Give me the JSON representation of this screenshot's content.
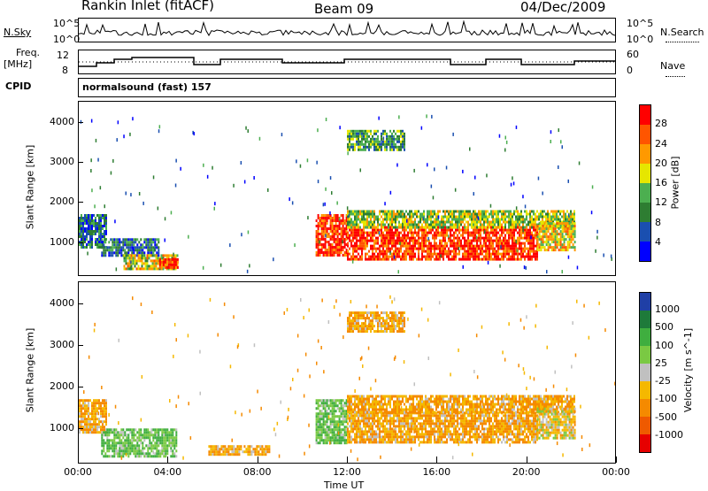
{
  "header": {
    "station": "Rankin Inlet (fitACF)",
    "beam": "Beam 09",
    "date": "04/Dec/2009"
  },
  "aux": {
    "nsky_label": "N.Sky",
    "nsky_ticks": [
      "10^5",
      "10^0"
    ],
    "nsearch_label": "N.Search",
    "nsearch_ticks": [
      "10^5",
      "10^0"
    ],
    "freq_label_1": "Freq.",
    "freq_label_2": "[MHz]",
    "freq_ticks": [
      "12",
      "8"
    ],
    "nave_label": "Nave",
    "nave_ticks": [
      "60",
      "0"
    ],
    "cpid_label": "CPID",
    "cpid_value": "normalsound (fast) 157"
  },
  "colors": {
    "power": [
      "#0000ff",
      "#1a4fb0",
      "#2e7d32",
      "#4caf50",
      "#e6e600",
      "#ff9900",
      "#ff5500",
      "#ff0000"
    ],
    "velocity": [
      "#1f3fa6",
      "#1e7a3a",
      "#3fae3f",
      "#7ac943",
      "#c0c0c0",
      "#f5b800",
      "#f58a00",
      "#ef5a00",
      "#e60000"
    ]
  },
  "chart_data": [
    {
      "type": "heatmap",
      "name": "power",
      "xlabel": "Time UT",
      "ylabel": "Slant Range [km]",
      "x_ticks": [
        "00:00",
        "04:00",
        "08:00",
        "12:00",
        "16:00",
        "20:00",
        "00:00"
      ],
      "y_ticks": [
        1000,
        2000,
        3000,
        4000
      ],
      "xlim": [
        0,
        24
      ],
      "ylim": [
        180,
        4500
      ],
      "colorbar_label": "Power [dB]",
      "colorbar_ticks": [
        4,
        8,
        12,
        16,
        20,
        24,
        28
      ],
      "colorbar_range": [
        0,
        32
      ],
      "regions": [
        {
          "t": [
            0.0,
            1.2
          ],
          "r": [
            900,
            1700
          ],
          "value": 8
        },
        {
          "t": [
            1.0,
            3.6
          ],
          "r": [
            700,
            1100
          ],
          "value": 8
        },
        {
          "t": [
            2.0,
            4.4
          ],
          "r": [
            350,
            700
          ],
          "value": 18
        },
        {
          "t": [
            3.6,
            4.4
          ],
          "r": [
            350,
            600
          ],
          "value": 28
        },
        {
          "t": [
            10.6,
            12.0
          ],
          "r": [
            650,
            1700
          ],
          "value": 28
        },
        {
          "t": [
            12.0,
            20.5
          ],
          "r": [
            600,
            1400
          ],
          "value": 28
        },
        {
          "t": [
            12.0,
            22.2
          ],
          "r": [
            1400,
            1800
          ],
          "value": 16
        },
        {
          "t": [
            20.5,
            22.2
          ],
          "r": [
            800,
            1500
          ],
          "value": 20
        },
        {
          "t": [
            12.0,
            14.6
          ],
          "r": [
            3300,
            3800
          ],
          "value": 12
        }
      ]
    },
    {
      "type": "heatmap",
      "name": "velocity",
      "xlabel": "Time UT",
      "ylabel": "Slant Range [km]",
      "x_ticks": [
        "00:00",
        "04:00",
        "08:00",
        "12:00",
        "16:00",
        "20:00",
        "00:00"
      ],
      "y_ticks": [
        1000,
        2000,
        3000,
        4000
      ],
      "xlim": [
        0,
        24
      ],
      "ylim": [
        180,
        4500
      ],
      "colorbar_label": "Velocity [m s^-1]",
      "colorbar_ticks": [
        "1000",
        "500",
        "100",
        "25",
        "-25",
        "-100",
        "-500",
        "-1000"
      ],
      "regions": [
        {
          "t": [
            0.0,
            1.2
          ],
          "r": [
            900,
            1700
          ],
          "value": -100
        },
        {
          "t": [
            1.0,
            4.4
          ],
          "r": [
            350,
            1000
          ],
          "value": 100
        },
        {
          "t": [
            5.8,
            8.5
          ],
          "r": [
            350,
            600
          ],
          "value": -100
        },
        {
          "t": [
            10.6,
            12.0
          ],
          "r": [
            650,
            1700
          ],
          "value": 100
        },
        {
          "t": [
            12.0,
            20.5
          ],
          "r": [
            700,
            1400
          ],
          "value": -100
        },
        {
          "t": [
            12.0,
            22.2
          ],
          "r": [
            1400,
            1800
          ],
          "value": -100
        },
        {
          "t": [
            20.5,
            22.2
          ],
          "r": [
            800,
            1500
          ],
          "value": -25
        },
        {
          "t": [
            12.0,
            14.6
          ],
          "r": [
            3300,
            3800
          ],
          "value": -100
        }
      ]
    }
  ]
}
